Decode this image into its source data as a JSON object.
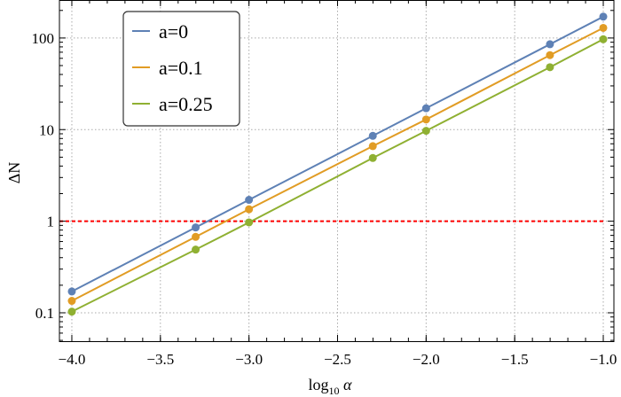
{
  "chart_data": {
    "type": "line",
    "title": "",
    "xlabel": "log10 α",
    "xlabel_parts": {
      "base": "log",
      "sub": "10",
      "var": "α"
    },
    "ylabel": "ΔN",
    "xlim": [
      -4.07,
      -0.94
    ],
    "ylim": [
      0.049,
      260
    ],
    "yscale": "log",
    "grid": true,
    "legend_placement": "top-left",
    "x_ticks": [
      -4.0,
      -3.5,
      -3.0,
      -2.5,
      -2.0,
      -1.5,
      -1.0
    ],
    "x_tick_labels": [
      "−4.0",
      "−3.5",
      "−3.0",
      "−2.5",
      "−2.0",
      "−1.5",
      "−1.0"
    ],
    "y_ticks": [
      0.1,
      1,
      10,
      100
    ],
    "y_tick_labels": [
      "0.1",
      "1",
      "10",
      "100"
    ],
    "x": [
      -4,
      -3.301,
      -3,
      -2.301,
      -2,
      -1.301,
      -1
    ],
    "series": [
      {
        "name": "a=0",
        "color": "#5E81B5",
        "values": [
          0.171,
          0.855,
          1.71,
          8.55,
          17.1,
          85.5,
          171
        ]
      },
      {
        "name": "a=0.1",
        "color": "#E19C24",
        "values": [
          0.135,
          0.675,
          1.35,
          6.6,
          12.9,
          65,
          129
        ]
      },
      {
        "name": "a=0.25",
        "color": "#8FB032",
        "values": [
          0.103,
          0.49,
          0.97,
          4.9,
          9.7,
          48,
          97
        ]
      }
    ],
    "reference_line": {
      "y": 1,
      "color": "#FF0000",
      "style": "dashed"
    }
  }
}
